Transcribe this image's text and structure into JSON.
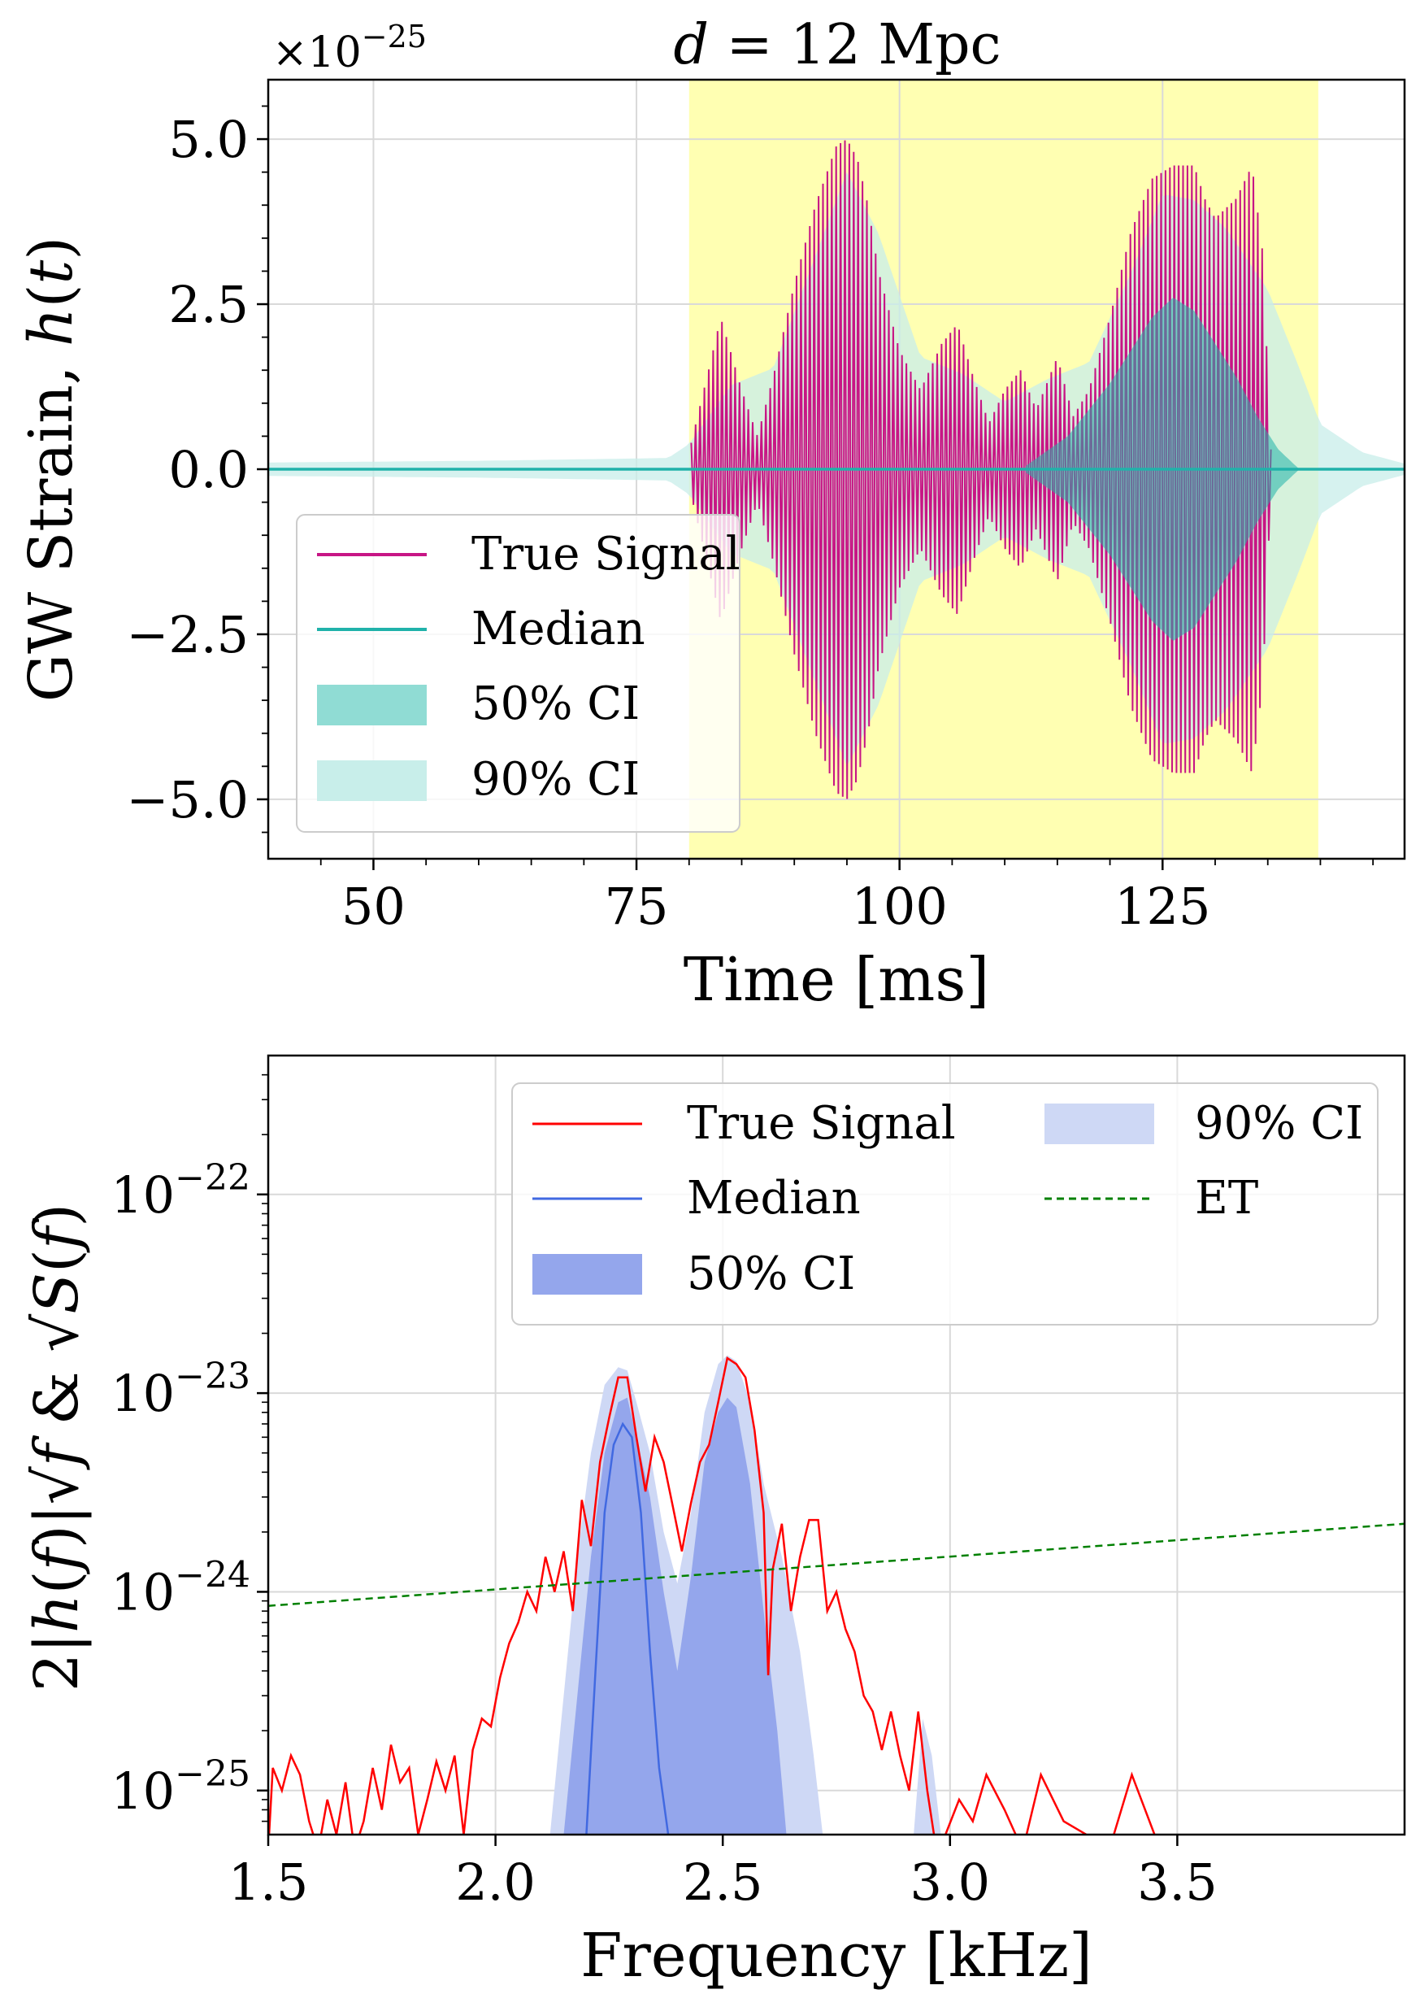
{
  "figure_title": "d = 12 Mpc",
  "chart_data": [
    {
      "type": "line",
      "name": "time-domain strain",
      "title": "d = 12 Mpc",
      "xlabel": "Time [ms]",
      "ylabel": "GW Strain, h(t)",
      "offset_text": "×10^−25",
      "offset_base": "×10",
      "offset_exp": "−25",
      "xlim": [
        40,
        148
      ],
      "ylim": [
        -5.9,
        5.9
      ],
      "xticks": [
        50,
        75,
        100,
        125
      ],
      "xtick_labels": [
        "50",
        "75",
        "100",
        "125"
      ],
      "yticks": [
        -5.0,
        -2.5,
        0.0,
        2.5,
        5.0
      ],
      "ytick_labels": [
        "−5.0",
        "−2.5",
        "0.0",
        "2.5",
        "5.0"
      ],
      "highlight_band": [
        80,
        139.8
      ],
      "grid": true,
      "legend_position": "lower-left",
      "signal_start_ms": 80.2,
      "signal_end_ms": 135.3,
      "true_signal_envelope": {
        "t": [
          80.2,
          82,
          83,
          85,
          86.5,
          88,
          90,
          92,
          94,
          95,
          96,
          97,
          98,
          100,
          102,
          104,
          105.5,
          107,
          108.5,
          110,
          111.5,
          113,
          114,
          115,
          116.5,
          118,
          120,
          122,
          124,
          126,
          128,
          129,
          130,
          132,
          133.5,
          134.5,
          135.3
        ],
        "amp": [
          0.4,
          1.6,
          2.3,
          1.2,
          0.5,
          1.4,
          2.8,
          4.0,
          4.9,
          5.0,
          4.7,
          4.0,
          3.0,
          1.8,
          1.2,
          1.9,
          2.2,
          1.4,
          0.7,
          1.2,
          1.5,
          0.9,
          1.3,
          1.7,
          0.8,
          1.2,
          2.3,
          3.6,
          4.4,
          4.6,
          4.6,
          4.1,
          3.8,
          4.1,
          4.6,
          3.3,
          0.3
        ]
      },
      "ci90_envelope": {
        "t": [
          40,
          60,
          78,
          80,
          84,
          88,
          92,
          95,
          98,
          102,
          106,
          110,
          114,
          118,
          122,
          125,
          128,
          131,
          135,
          138,
          140,
          144,
          148
        ],
        "amp": [
          0.12,
          0.15,
          0.2,
          0.45,
          1.5,
          1.8,
          3.8,
          5.3,
          4.2,
          2.0,
          1.7,
          1.2,
          1.6,
          1.9,
          3.5,
          4.9,
          4.8,
          4.3,
          3.2,
          1.8,
          0.8,
          0.3,
          0.1
        ]
      },
      "ci50_envelope": {
        "t": [
          112,
          116,
          120,
          124,
          126,
          128,
          132,
          134,
          136,
          138
        ],
        "amp": [
          0.05,
          0.5,
          1.3,
          2.3,
          2.6,
          2.4,
          1.4,
          0.8,
          0.3,
          0.0
        ]
      },
      "median_value": 0.0,
      "legend": [
        "True Signal",
        "Median",
        "50% CI",
        "90% CI"
      ],
      "colors": {
        "true_signal": "#c71585",
        "median": "#20b2aa",
        "ci50": "#90dcd4",
        "ci90": "#c8eeea",
        "band": "#ffffb2",
        "grid": "#d9d9d9"
      }
    },
    {
      "type": "line",
      "name": "frequency-domain spectrum",
      "xlabel": "Frequency [kHz]",
      "ylabel": "2|h(f)|√f & √S(f)",
      "ylabel_parts": [
        "2|",
        "h",
        "(",
        "f",
        ")|√",
        "f",
        " & √",
        "S",
        "(",
        "f",
        ")"
      ],
      "yscale": "log",
      "xlim": [
        1.5,
        4.0
      ],
      "ylim": [
        6e-26,
        5e-22
      ],
      "xticks": [
        1.5,
        2.0,
        2.5,
        3.0,
        3.5
      ],
      "xtick_labels": [
        "1.5",
        "2.0",
        "2.5",
        "3.0",
        "3.5"
      ],
      "yticks": [
        1e-25,
        1e-24,
        1e-23,
        1e-22
      ],
      "ytick_base": "10",
      "ytick_exps": [
        "−25",
        "−24",
        "−23",
        "−22"
      ],
      "grid": true,
      "legend_position": "upper-right",
      "true_signal": {
        "x": [
          1.5,
          1.51,
          1.53,
          1.55,
          1.57,
          1.59,
          1.61,
          1.63,
          1.65,
          1.67,
          1.69,
          1.71,
          1.73,
          1.75,
          1.77,
          1.79,
          1.81,
          1.83,
          1.85,
          1.87,
          1.89,
          1.91,
          1.93,
          1.95,
          1.97,
          1.99,
          2.01,
          2.03,
          2.05,
          2.07,
          2.09,
          2.11,
          2.13,
          2.15,
          2.17,
          2.19,
          2.21,
          2.23,
          2.25,
          2.27,
          2.29,
          2.31,
          2.33,
          2.35,
          2.37,
          2.39,
          2.41,
          2.43,
          2.45,
          2.47,
          2.49,
          2.51,
          2.53,
          2.55,
          2.57,
          2.59,
          2.6,
          2.61,
          2.63,
          2.65,
          2.67,
          2.69,
          2.71,
          2.73,
          2.75,
          2.77,
          2.79,
          2.81,
          2.83,
          2.85,
          2.87,
          2.89,
          2.91,
          2.93,
          2.95,
          2.97,
          2.99,
          3.02,
          3.05,
          3.08,
          3.12,
          3.16,
          3.2,
          3.25,
          3.3,
          3.35,
          3.4,
          3.45,
          3.5
        ],
        "y": [
          5e-26,
          1.3e-25,
          1e-25,
          1.5e-25,
          1.2e-25,
          7e-26,
          5e-26,
          9e-26,
          6e-26,
          1.1e-25,
          5e-26,
          7e-26,
          1.3e-25,
          8e-26,
          1.7e-25,
          1.1e-25,
          1.3e-25,
          6e-26,
          9e-26,
          1.4e-25,
          1e-25,
          1.5e-25,
          6e-26,
          1.6e-25,
          2.3e-25,
          2.1e-25,
          3.7e-25,
          5.5e-25,
          7e-25,
          1e-24,
          8e-25,
          1.5e-24,
          1e-24,
          1.6e-24,
          8e-25,
          2.9e-24,
          1.7e-24,
          4.5e-24,
          7.5e-24,
          1.2e-23,
          1.2e-23,
          6e-24,
          3.2e-24,
          6e-24,
          4.5e-24,
          2.7e-24,
          1.6e-24,
          2.8e-24,
          4.5e-24,
          5.5e-24,
          9e-24,
          1.5e-23,
          1.4e-23,
          1.2e-23,
          6.5e-24,
          2.5e-24,
          3.8e-25,
          1.3e-24,
          2.2e-24,
          8e-25,
          1.5e-24,
          2.3e-24,
          2.3e-24,
          8e-25,
          1e-24,
          6.5e-25,
          5e-25,
          3e-25,
          2.5e-25,
          1.6e-25,
          2.5e-25,
          1.5e-25,
          1e-25,
          2.5e-25,
          1e-25,
          5e-26,
          6e-26,
          9e-26,
          7e-26,
          1.2e-25,
          8e-26,
          5e-26,
          1.2e-25,
          7e-26,
          6e-26,
          5e-26,
          1.2e-25,
          6e-26,
          5e-26
        ]
      },
      "median": {
        "x": [
          2.2,
          2.22,
          2.24,
          2.26,
          2.28,
          2.3,
          2.32,
          2.34,
          2.36,
          2.38
        ],
        "y": [
          6e-26,
          4e-25,
          2.5e-24,
          5.5e-24,
          7e-24,
          6e-24,
          2.5e-24,
          5e-25,
          1.3e-25,
          6e-26
        ]
      },
      "ci50": {
        "x": [
          2.15,
          2.18,
          2.21,
          2.24,
          2.27,
          2.29,
          2.31,
          2.34,
          2.37,
          2.4,
          2.43,
          2.46,
          2.49,
          2.51,
          2.53,
          2.56,
          2.59,
          2.62,
          2.64
        ],
        "y": [
          6e-26,
          3e-25,
          1.5e-24,
          5e-24,
          9e-24,
          9.5e-24,
          6e-24,
          3e-24,
          1e-24,
          4e-25,
          1.2e-24,
          4.5e-24,
          8e-24,
          9.5e-24,
          8.5e-24,
          3.5e-24,
          8e-25,
          2e-25,
          6e-26
        ]
      },
      "ci90": {
        "x": [
          2.12,
          2.15,
          2.18,
          2.21,
          2.24,
          2.27,
          2.29,
          2.31,
          2.34,
          2.37,
          2.4,
          2.43,
          2.46,
          2.49,
          2.51,
          2.53,
          2.56,
          2.59,
          2.63,
          2.67,
          2.7,
          2.72
        ],
        "y": [
          6e-26,
          3e-25,
          1.5e-24,
          5e-24,
          1.1e-23,
          1.35e-23,
          1.3e-23,
          9e-24,
          5e-24,
          2e-24,
          1.1e-24,
          2.5e-24,
          8e-24,
          1.4e-23,
          1.55e-23,
          1.45e-23,
          9e-24,
          3.5e-24,
          1.5e-24,
          5e-25,
          1.5e-25,
          6e-26
        ]
      },
      "ci90_bump": {
        "x": [
          2.92,
          2.94,
          2.96,
          2.98
        ],
        "y": [
          6e-26,
          2.3e-25,
          1.5e-25,
          6e-26
        ]
      },
      "et_curve": {
        "x": [
          1.5,
          4.0
        ],
        "y": [
          8.5e-25,
          2.2e-24
        ]
      },
      "legend": [
        "True Signal",
        "Median",
        "50% CI",
        "90% CI",
        "ET"
      ],
      "colors": {
        "true_signal": "#ff0000",
        "median": "#4169e1",
        "ci50": "#94a6ec",
        "ci90": "#ced8f5",
        "et": "#008000",
        "grid": "#d9d9d9"
      }
    }
  ]
}
